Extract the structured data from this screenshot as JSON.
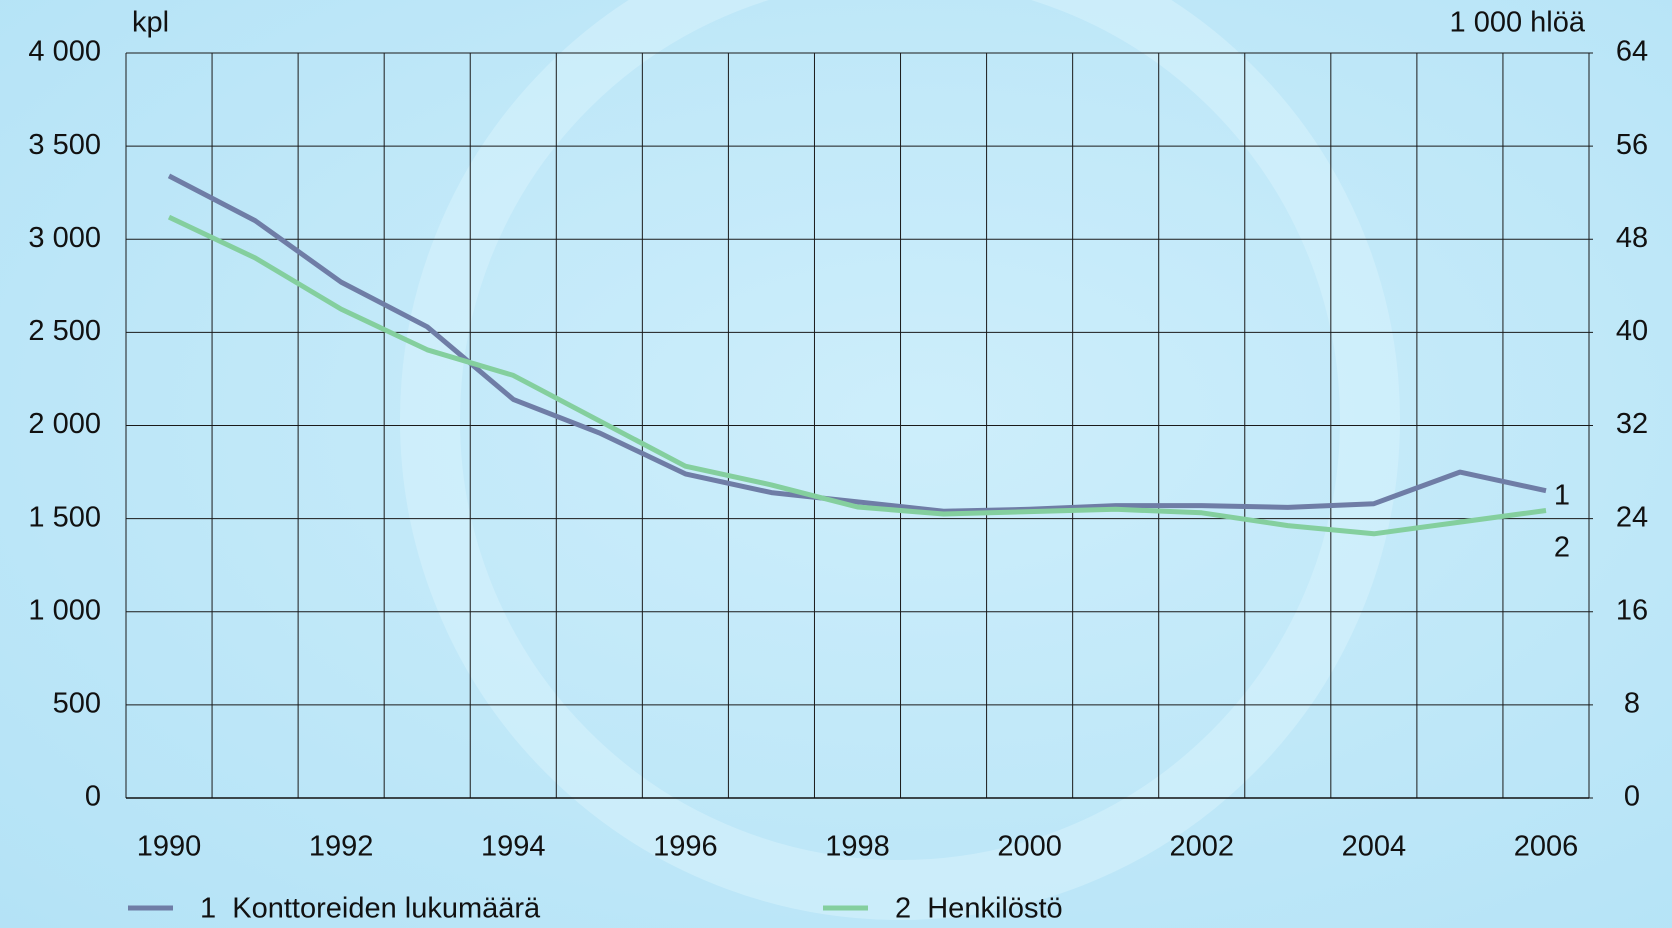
{
  "chart_data": {
    "type": "line",
    "y_label": "kpl",
    "y2_label": "1 000 hlöä",
    "categories": [
      "1990",
      null,
      "1992",
      null,
      "1994",
      null,
      "1996",
      null,
      "1998",
      null,
      "2000",
      null,
      "2002",
      null,
      "2004",
      null,
      "2006"
    ],
    "series": [
      {
        "name": "1  Konttoreiden lukumäärä",
        "end_label": "1",
        "color": "#6f7da6",
        "axis": "y",
        "values": [
          3340,
          3100,
          2770,
          2530,
          2140,
          1960,
          1740,
          1640,
          1590,
          1540,
          1550,
          1570,
          1570,
          1560,
          1580,
          1750,
          1650
        ]
      },
      {
        "name": "2  Henkilöstö",
        "end_label": "2",
        "color": "#84cf9e",
        "axis": "y2",
        "values": [
          49.9,
          46.4,
          42.0,
          38.5,
          36.3,
          32.4,
          28.5,
          26.9,
          25.0,
          24.4,
          24.6,
          24.8,
          24.5,
          23.4,
          22.7,
          23.7,
          24.7
        ]
      }
    ],
    "ylim": [
      0,
      4000
    ],
    "yticks": [
      0,
      500,
      {
        "value": 1000,
        "label": "1 000"
      },
      {
        "value": 1500,
        "label": "1 500"
      },
      {
        "value": 2000,
        "label": "2 000"
      },
      {
        "value": 2500,
        "label": "2 500"
      },
      {
        "value": 3000,
        "label": "3 000"
      },
      {
        "value": 3500,
        "label": "3 500"
      },
      {
        "value": 4000,
        "label": "4 000"
      }
    ],
    "y2lim": [
      0,
      64
    ],
    "y2ticks": [
      0,
      8,
      16,
      24,
      32,
      40,
      48,
      56,
      64
    ],
    "grid": true
  }
}
